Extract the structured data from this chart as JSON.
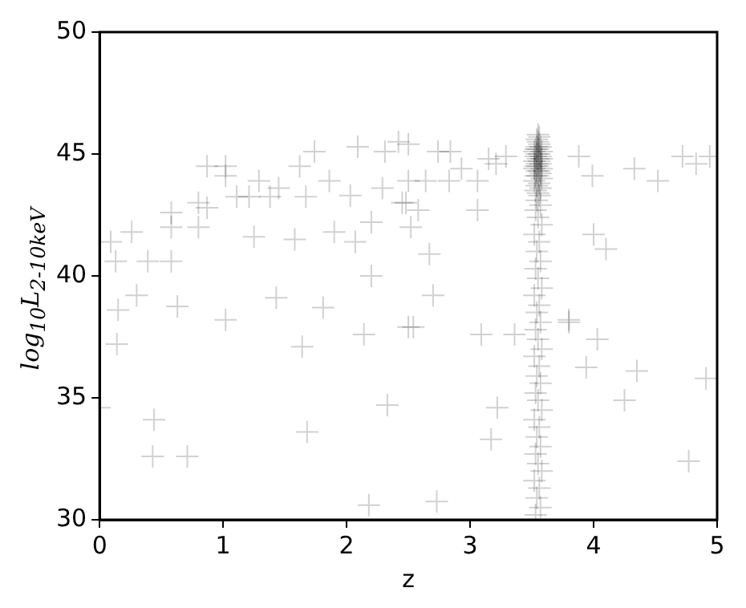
{
  "chart_data": {
    "type": "scatter",
    "xlabel": "z",
    "ylabel": "log$_{10}$L$_{2-10keV}$",
    "xlim": [
      0,
      5
    ],
    "ylim": [
      30,
      50
    ],
    "xticks": [
      0,
      1,
      2,
      3,
      4,
      5
    ],
    "yticks": [
      30,
      35,
      40,
      45,
      50
    ],
    "grid": false,
    "legend": false,
    "marker": "cross",
    "series": [
      {
        "color": "#000000",
        "x": [
          0.0,
          0.14,
          0.44,
          0.43,
          0.71,
          1.02,
          1.64,
          2.14,
          1.68,
          2.33,
          2.18,
          2.5,
          0.15,
          0.3,
          0.63,
          1.43,
          1.81,
          0.09,
          0.13,
          0.26,
          0.39,
          0.58,
          0.58,
          0.58,
          0.8,
          0.8,
          0.87,
          0.87,
          1.02,
          1.02,
          1.11,
          1.21,
          1.29,
          1.38,
          1.45,
          1.25,
          1.58,
          1.67,
          1.62,
          1.74,
          1.86,
          1.9,
          2.07,
          2.03,
          2.09,
          2.2,
          2.2,
          2.29,
          2.31,
          2.42,
          2.45,
          2.5,
          2.74,
          2.84,
          2.5,
          2.64,
          2.83,
          2.48,
          2.58,
          2.52,
          2.67,
          2.7,
          3.06,
          3.06,
          3.15,
          3.21,
          3.29,
          2.93,
          3.88,
          3.99,
          4.33,
          4.52,
          4.0,
          4.1,
          4.72,
          4.83,
          4.94,
          3.8,
          2.54,
          3.09,
          3.36,
          3.8,
          4.03,
          3.94,
          4.35,
          4.91,
          4.25,
          3.22,
          3.17,
          4.77,
          2.73
        ],
        "values": [
          34.6,
          37.2,
          34.1,
          32.6,
          32.6,
          38.2,
          37.1,
          37.6,
          33.6,
          34.7,
          30.6,
          37.9,
          38.6,
          39.2,
          38.75,
          39.1,
          38.7,
          41.4,
          40.6,
          41.8,
          40.6,
          40.6,
          42.0,
          42.6,
          42.0,
          43.0,
          42.8,
          44.5,
          44.5,
          44.1,
          43.25,
          43.25,
          43.9,
          43.25,
          43.6,
          41.6,
          41.5,
          43.25,
          44.5,
          45.1,
          43.9,
          41.8,
          41.4,
          43.3,
          45.3,
          42.2,
          40.0,
          43.6,
          45.1,
          45.5,
          43.0,
          45.4,
          45.1,
          45.1,
          43.9,
          43.9,
          43.9,
          43.0,
          42.7,
          42.0,
          40.9,
          39.2,
          42.7,
          43.9,
          44.8,
          44.6,
          44.9,
          44.4,
          44.9,
          44.1,
          44.4,
          43.9,
          41.7,
          41.1,
          44.9,
          44.6,
          44.9,
          38.2,
          37.9,
          37.6,
          37.6,
          38.1,
          37.4,
          36.25,
          36.1,
          35.8,
          34.9,
          34.6,
          33.3,
          32.4,
          30.75
        ]
      },
      {
        "color": "#000000",
        "x": [
          3.53,
          3.57,
          3.54,
          3.56,
          3.52,
          3.58,
          3.55,
          3.53,
          3.57,
          3.54,
          3.56,
          3.52,
          3.58,
          3.55,
          3.53,
          3.57,
          3.54,
          3.56,
          3.52,
          3.58,
          3.55,
          3.53,
          3.57,
          3.54,
          3.56,
          3.52,
          3.58,
          3.55,
          3.53,
          3.57,
          3.54,
          3.56,
          3.52,
          3.58,
          3.55,
          3.53,
          3.57,
          3.54,
          3.56,
          3.55,
          3.53,
          3.57,
          3.54,
          3.56,
          3.52,
          3.58,
          3.55,
          3.53,
          3.57,
          3.54,
          3.56,
          3.52,
          3.58,
          3.55,
          3.53,
          3.57,
          3.54,
          3.56,
          3.52,
          3.58,
          3.55,
          3.53,
          3.57,
          3.54,
          3.56,
          3.52,
          3.58,
          3.55,
          3.53,
          3.57,
          3.54,
          3.56,
          3.55,
          3.54,
          3.56,
          3.55
        ],
        "values": [
          30.2,
          30.5,
          30.9,
          31.3,
          31.6,
          32.0,
          32.3,
          32.7,
          33.0,
          33.4,
          33.8,
          34.1,
          34.5,
          34.9,
          35.2,
          35.6,
          35.9,
          36.3,
          36.7,
          37.0,
          37.4,
          37.8,
          38.1,
          38.5,
          38.8,
          39.2,
          39.5,
          39.9,
          40.3,
          40.6,
          41.0,
          41.4,
          41.7,
          42.1,
          42.4,
          42.7,
          42.9,
          43.1,
          43.3,
          43.4,
          43.5,
          43.6,
          43.7,
          43.8,
          43.9,
          44.0,
          44.1,
          44.1,
          44.2,
          44.3,
          44.3,
          44.4,
          44.4,
          44.5,
          44.5,
          44.6,
          44.6,
          44.7,
          44.7,
          44.8,
          44.8,
          44.9,
          44.9,
          45.0,
          45.0,
          45.1,
          45.1,
          45.2,
          45.2,
          45.3,
          45.3,
          45.4,
          45.5,
          45.6,
          45.7,
          45.8
        ]
      }
    ]
  }
}
